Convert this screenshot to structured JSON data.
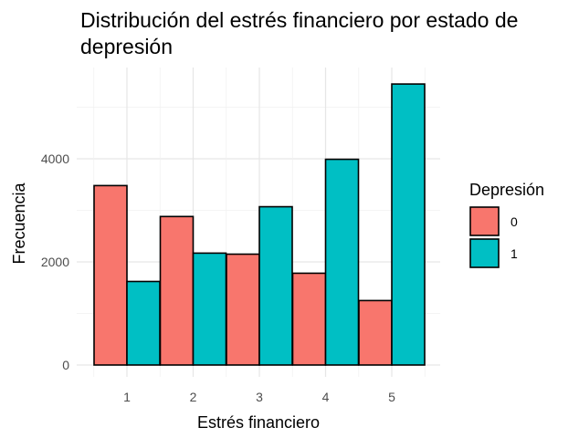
{
  "chart_data": {
    "type": "bar",
    "title": "Distribución del estrés financiero por estado de depresión",
    "xlabel": "Estrés financiero",
    "ylabel": "Frecuencia",
    "categories": [
      "1",
      "2",
      "3",
      "4",
      "5"
    ],
    "series": [
      {
        "name": "0",
        "values": [
          3480,
          2880,
          2150,
          1780,
          1250
        ],
        "color": "#F8766D"
      },
      {
        "name": "1",
        "values": [
          1620,
          2170,
          3070,
          3990,
          5450
        ],
        "color": "#00BFC4"
      }
    ],
    "yticks": [
      0,
      2000,
      4000
    ],
    "ylim": [
      0,
      5450
    ],
    "grid": true,
    "legend": {
      "title": "Depresión",
      "position": "right"
    }
  }
}
